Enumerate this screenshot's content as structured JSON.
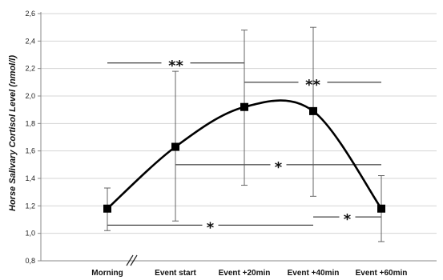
{
  "chart_data": {
    "type": "line",
    "title": "",
    "xlabel": "",
    "ylabel": "Horse Salivary Cortisol Level (nmol/l)",
    "categories": [
      "Morning",
      "Event start",
      "Event +20min",
      "Event +40min",
      "Event +60min"
    ],
    "series": [
      {
        "values": [
          1.18,
          1.63,
          1.92,
          1.89,
          1.18
        ],
        "error_low": [
          1.02,
          1.09,
          1.35,
          1.27,
          0.94
        ],
        "error_high": [
          1.33,
          2.18,
          2.48,
          2.5,
          1.42
        ],
        "color": "#000000",
        "marker": "square",
        "smooth": true
      }
    ],
    "ylim": [
      0.8,
      2.6
    ],
    "yticks": [
      "0,8",
      "1,0",
      "1,2",
      "1,4",
      "1,6",
      "1,8",
      "2,0",
      "2,2",
      "2,4",
      "2,6"
    ],
    "ytick_values": [
      0.8,
      1.0,
      1.2,
      1.4,
      1.6,
      1.8,
      2.0,
      2.2,
      2.4,
      2.6
    ],
    "grid": "horizontal",
    "axis_break": "between y-axis and Morning",
    "significance": [
      {
        "label": "**",
        "from": "Morning",
        "to": "Event +20min",
        "y": 2.24
      },
      {
        "label": "**",
        "from": "Event +20min",
        "to": "Event +60min",
        "y": 2.1
      },
      {
        "label": "*",
        "from": "Event start",
        "to": "Event +60min",
        "y": 1.5
      },
      {
        "label": "*",
        "from": "Morning",
        "to": "Event +40min",
        "y": 1.06
      },
      {
        "label": "*",
        "from": "Event +40min",
        "to": "Event +60min",
        "y": 1.12
      }
    ]
  }
}
